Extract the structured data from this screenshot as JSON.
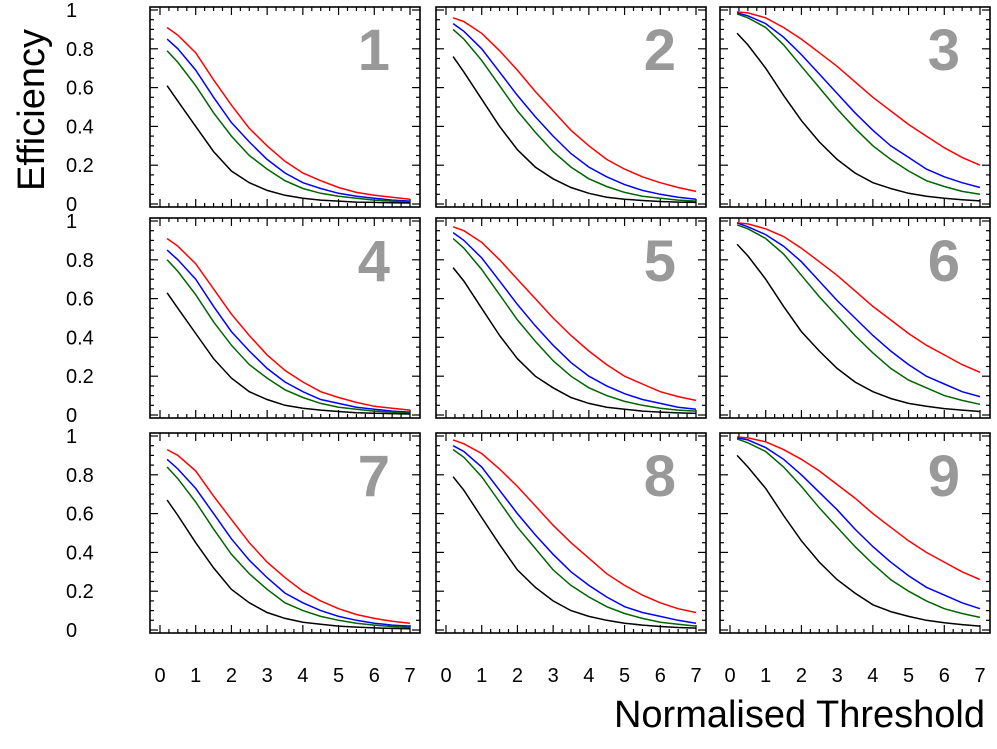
{
  "chart_data": {
    "type": "line",
    "layout": "3x3 grid of panels",
    "ylabel": "Efficiency",
    "xlabel": "Normalised Threshold",
    "xlim": [
      0,
      7
    ],
    "ylim": [
      0,
      1
    ],
    "xticks": [
      "0",
      "1",
      "2",
      "3",
      "4",
      "5",
      "6",
      "7"
    ],
    "yticks": [
      "0",
      "0.2",
      "0.4",
      "0.6",
      "0.8",
      "1"
    ],
    "x": [
      0.2,
      0.5,
      1.0,
      1.5,
      2.0,
      2.5,
      3.0,
      3.5,
      4.0,
      4.5,
      5.0,
      5.5,
      6.0,
      6.5,
      7.0
    ],
    "series_colors": {
      "red": "#ff0000",
      "blue": "#0000ff",
      "green": "#006400",
      "black": "#000000"
    },
    "panels": [
      {
        "label": "1",
        "series": [
          {
            "name": "red",
            "values": [
              0.91,
              0.87,
              0.78,
              0.64,
              0.51,
              0.39,
              0.3,
              0.22,
              0.16,
              0.12,
              0.085,
              0.06,
              0.045,
              0.035,
              0.025
            ]
          },
          {
            "name": "blue",
            "values": [
              0.85,
              0.8,
              0.69,
              0.55,
              0.42,
              0.32,
              0.23,
              0.16,
              0.11,
              0.08,
              0.055,
              0.04,
              0.03,
              0.02,
              0.015
            ]
          },
          {
            "name": "green",
            "values": [
              0.79,
              0.73,
              0.61,
              0.47,
              0.35,
              0.25,
              0.18,
              0.12,
              0.08,
              0.055,
              0.04,
              0.03,
              0.02,
              0.015,
              0.01
            ]
          },
          {
            "name": "black",
            "values": [
              0.61,
              0.53,
              0.4,
              0.27,
              0.17,
              0.11,
              0.07,
              0.045,
              0.03,
              0.02,
              0.015,
              0.01,
              0.008,
              0.006,
              0.005
            ]
          }
        ]
      },
      {
        "label": "2",
        "series": [
          {
            "name": "red",
            "values": [
              0.96,
              0.94,
              0.88,
              0.79,
              0.69,
              0.58,
              0.48,
              0.38,
              0.3,
              0.23,
              0.18,
              0.14,
              0.11,
              0.085,
              0.065
            ]
          },
          {
            "name": "blue",
            "values": [
              0.93,
              0.89,
              0.8,
              0.68,
              0.56,
              0.45,
              0.35,
              0.26,
              0.19,
              0.14,
              0.1,
              0.07,
              0.05,
              0.035,
              0.025
            ]
          },
          {
            "name": "green",
            "values": [
              0.9,
              0.85,
              0.74,
              0.61,
              0.48,
              0.37,
              0.27,
              0.19,
              0.13,
              0.09,
              0.06,
              0.04,
              0.03,
              0.02,
              0.015
            ]
          },
          {
            "name": "black",
            "values": [
              0.76,
              0.68,
              0.54,
              0.4,
              0.28,
              0.19,
              0.13,
              0.085,
              0.055,
              0.035,
              0.025,
              0.018,
              0.013,
              0.01,
              0.008
            ]
          }
        ]
      },
      {
        "label": "3",
        "series": [
          {
            "name": "red",
            "values": [
              0.99,
              0.985,
              0.96,
              0.91,
              0.85,
              0.78,
              0.71,
              0.63,
              0.55,
              0.48,
              0.41,
              0.35,
              0.29,
              0.24,
              0.2
            ]
          },
          {
            "name": "blue",
            "values": [
              0.985,
              0.97,
              0.93,
              0.86,
              0.77,
              0.67,
              0.57,
              0.47,
              0.38,
              0.3,
              0.24,
              0.18,
              0.14,
              0.11,
              0.085
            ]
          },
          {
            "name": "green",
            "values": [
              0.98,
              0.96,
              0.91,
              0.82,
              0.71,
              0.6,
              0.49,
              0.39,
              0.3,
              0.23,
              0.17,
              0.12,
              0.09,
              0.065,
              0.05
            ]
          },
          {
            "name": "black",
            "values": [
              0.88,
              0.82,
              0.7,
              0.56,
              0.43,
              0.32,
              0.23,
              0.16,
              0.11,
              0.08,
              0.055,
              0.04,
              0.03,
              0.022,
              0.016
            ]
          }
        ]
      },
      {
        "label": "4",
        "series": [
          {
            "name": "red",
            "values": [
              0.91,
              0.87,
              0.78,
              0.65,
              0.52,
              0.41,
              0.31,
              0.23,
              0.17,
              0.12,
              0.09,
              0.065,
              0.045,
              0.035,
              0.025
            ]
          },
          {
            "name": "blue",
            "values": [
              0.85,
              0.8,
              0.7,
              0.56,
              0.43,
              0.33,
              0.24,
              0.17,
              0.12,
              0.08,
              0.06,
              0.04,
              0.03,
              0.02,
              0.015
            ]
          },
          {
            "name": "green",
            "values": [
              0.8,
              0.74,
              0.62,
              0.48,
              0.36,
              0.26,
              0.19,
              0.13,
              0.09,
              0.06,
              0.04,
              0.03,
              0.02,
              0.015,
              0.01
            ]
          },
          {
            "name": "black",
            "values": [
              0.63,
              0.55,
              0.42,
              0.29,
              0.19,
              0.12,
              0.08,
              0.05,
              0.035,
              0.025,
              0.018,
              0.012,
              0.009,
              0.007,
              0.005
            ]
          }
        ]
      },
      {
        "label": "5",
        "series": [
          {
            "name": "red",
            "values": [
              0.97,
              0.95,
              0.89,
              0.8,
              0.7,
              0.6,
              0.5,
              0.41,
              0.33,
              0.26,
              0.2,
              0.16,
              0.12,
              0.095,
              0.075
            ]
          },
          {
            "name": "blue",
            "values": [
              0.94,
              0.9,
              0.81,
              0.69,
              0.57,
              0.46,
              0.36,
              0.27,
              0.2,
              0.15,
              0.11,
              0.08,
              0.06,
              0.04,
              0.03
            ]
          },
          {
            "name": "green",
            "values": [
              0.91,
              0.86,
              0.75,
              0.62,
              0.49,
              0.38,
              0.28,
              0.2,
              0.14,
              0.1,
              0.07,
              0.05,
              0.035,
              0.025,
              0.02
            ]
          },
          {
            "name": "black",
            "values": [
              0.76,
              0.69,
              0.55,
              0.41,
              0.29,
              0.2,
              0.14,
              0.09,
              0.06,
              0.04,
              0.03,
              0.02,
              0.015,
              0.011,
              0.008
            ]
          }
        ]
      },
      {
        "label": "6",
        "series": [
          {
            "name": "red",
            "values": [
              0.99,
              0.985,
              0.96,
              0.92,
              0.86,
              0.79,
              0.72,
              0.64,
              0.56,
              0.49,
              0.42,
              0.36,
              0.31,
              0.26,
              0.22
            ]
          },
          {
            "name": "blue",
            "values": [
              0.99,
              0.97,
              0.93,
              0.87,
              0.79,
              0.69,
              0.59,
              0.5,
              0.41,
              0.33,
              0.26,
              0.2,
              0.16,
              0.12,
              0.095
            ]
          },
          {
            "name": "green",
            "values": [
              0.98,
              0.96,
              0.91,
              0.83,
              0.72,
              0.61,
              0.51,
              0.41,
              0.32,
              0.24,
              0.18,
              0.14,
              0.1,
              0.075,
              0.055
            ]
          },
          {
            "name": "black",
            "values": [
              0.88,
              0.82,
              0.7,
              0.56,
              0.43,
              0.33,
              0.24,
              0.17,
              0.12,
              0.085,
              0.06,
              0.045,
              0.033,
              0.025,
              0.018
            ]
          }
        ]
      },
      {
        "label": "7",
        "series": [
          {
            "name": "red",
            "values": [
              0.93,
              0.9,
              0.82,
              0.69,
              0.57,
              0.45,
              0.35,
              0.27,
              0.2,
              0.15,
              0.11,
              0.08,
              0.06,
              0.045,
              0.035
            ]
          },
          {
            "name": "blue",
            "values": [
              0.88,
              0.83,
              0.73,
              0.6,
              0.47,
              0.36,
              0.27,
              0.19,
              0.14,
              0.1,
              0.07,
              0.05,
              0.035,
              0.025,
              0.02
            ]
          },
          {
            "name": "green",
            "values": [
              0.84,
              0.78,
              0.66,
              0.52,
              0.39,
              0.29,
              0.21,
              0.14,
              0.1,
              0.07,
              0.05,
              0.035,
              0.025,
              0.018,
              0.013
            ]
          },
          {
            "name": "black",
            "values": [
              0.67,
              0.59,
              0.45,
              0.32,
              0.21,
              0.14,
              0.09,
              0.06,
              0.04,
              0.03,
              0.02,
              0.015,
              0.011,
              0.008,
              0.006
            ]
          }
        ]
      },
      {
        "label": "8",
        "series": [
          {
            "name": "red",
            "values": [
              0.98,
              0.96,
              0.91,
              0.83,
              0.74,
              0.64,
              0.54,
              0.45,
              0.37,
              0.29,
              0.23,
              0.18,
              0.14,
              0.11,
              0.09
            ]
          },
          {
            "name": "blue",
            "values": [
              0.95,
              0.92,
              0.84,
              0.72,
              0.6,
              0.49,
              0.39,
              0.3,
              0.23,
              0.17,
              0.12,
              0.09,
              0.07,
              0.05,
              0.035
            ]
          },
          {
            "name": "green",
            "values": [
              0.93,
              0.89,
              0.79,
              0.66,
              0.53,
              0.42,
              0.31,
              0.23,
              0.17,
              0.12,
              0.085,
              0.06,
              0.04,
              0.03,
              0.02
            ]
          },
          {
            "name": "black",
            "values": [
              0.79,
              0.72,
              0.58,
              0.44,
              0.31,
              0.22,
              0.15,
              0.1,
              0.07,
              0.05,
              0.035,
              0.025,
              0.018,
              0.013,
              0.01
            ]
          }
        ]
      },
      {
        "label": "9",
        "series": [
          {
            "name": "red",
            "values": [
              0.995,
              0.99,
              0.97,
              0.93,
              0.88,
              0.82,
              0.75,
              0.68,
              0.6,
              0.53,
              0.46,
              0.4,
              0.35,
              0.3,
              0.26
            ]
          },
          {
            "name": "blue",
            "values": [
              0.99,
              0.98,
              0.94,
              0.88,
              0.8,
              0.71,
              0.62,
              0.52,
              0.43,
              0.35,
              0.28,
              0.22,
              0.18,
              0.14,
              0.11
            ]
          },
          {
            "name": "green",
            "values": [
              0.985,
              0.965,
              0.92,
              0.84,
              0.74,
              0.63,
              0.53,
              0.43,
              0.34,
              0.26,
              0.2,
              0.15,
              0.11,
              0.085,
              0.065
            ]
          },
          {
            "name": "black",
            "values": [
              0.9,
              0.84,
              0.73,
              0.59,
              0.46,
              0.35,
              0.26,
              0.19,
              0.13,
              0.095,
              0.07,
              0.05,
              0.037,
              0.028,
              0.02
            ]
          }
        ]
      }
    ]
  }
}
